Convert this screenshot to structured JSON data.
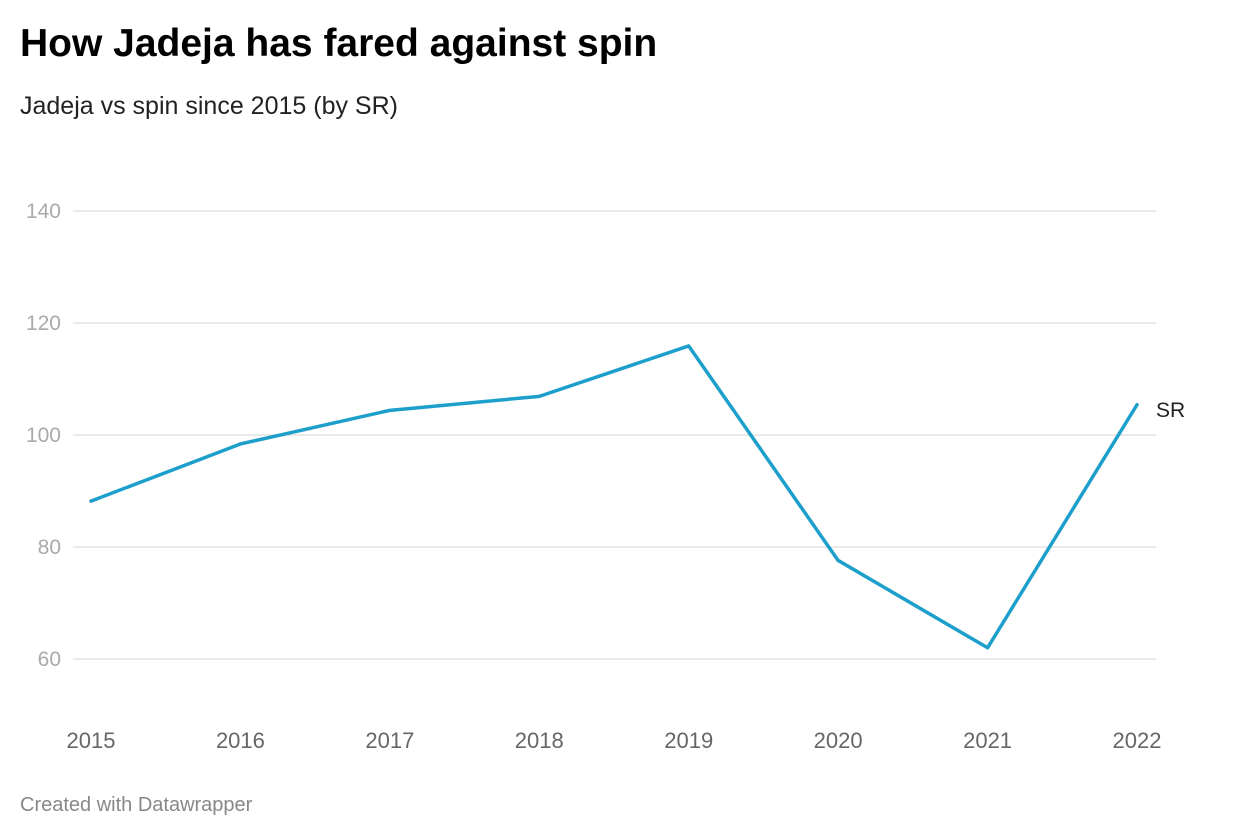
{
  "chart_data": {
    "type": "line",
    "title": "How Jadeja has fared against spin",
    "subtitle": "Jadeja vs spin since 2015 (by SR)",
    "xlabel": "",
    "ylabel": "",
    "categories": [
      "2015",
      "2016",
      "2017",
      "2018",
      "2019",
      "2020",
      "2021",
      "2022"
    ],
    "series": [
      {
        "name": "SR",
        "color": "#1d9fcb",
        "values": [
          88.2,
          98.4,
          104.4,
          106.9,
          115.9,
          77.6,
          62.0,
          105.4
        ]
      }
    ],
    "yticks": [
      60,
      80,
      100,
      120,
      140
    ],
    "ylim": [
      52,
      140
    ],
    "grid": true,
    "legend": "inline-end-label"
  },
  "footer": "Created with Datawrapper"
}
